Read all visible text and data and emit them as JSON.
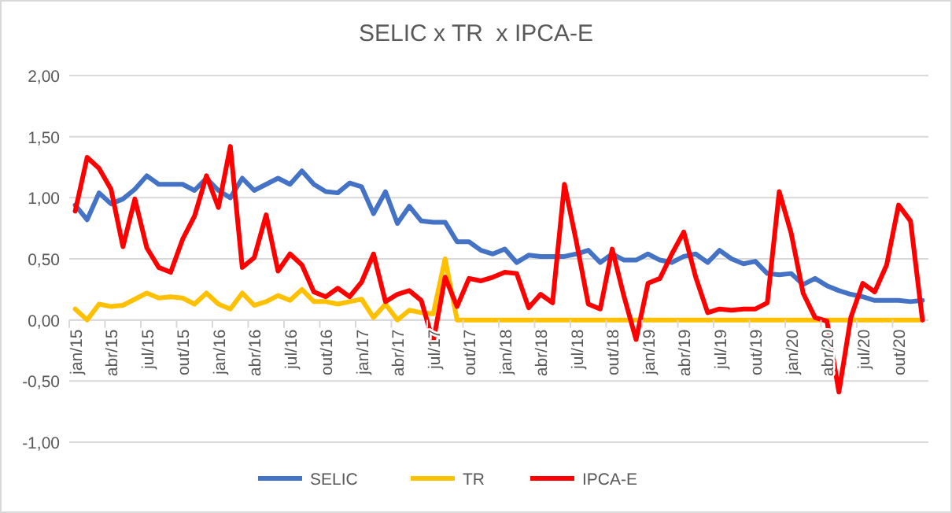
{
  "chart_data": {
    "type": "line",
    "title": "SELIC x TR  x IPCA-E",
    "categories": [
      "jan/15",
      null,
      null,
      "abr/15",
      null,
      null,
      "jul/15",
      null,
      null,
      "out/15",
      null,
      null,
      "jan/16",
      null,
      null,
      "abr/16",
      null,
      null,
      "jul/16",
      null,
      null,
      "out/16",
      null,
      null,
      "jan/17",
      null,
      null,
      "abr/17",
      null,
      null,
      "jul/17",
      null,
      null,
      "out/17",
      null,
      null,
      "jan/18",
      null,
      null,
      "abr/18",
      null,
      null,
      "jul/18",
      null,
      null,
      "out/18",
      null,
      null,
      "jan/19",
      null,
      null,
      "abr/19",
      null,
      null,
      "jul/19",
      null,
      null,
      "out/19",
      null,
      null,
      "jan/20",
      null,
      null,
      "abr/20",
      null,
      null,
      "jul/20",
      null,
      null,
      "out/20",
      null,
      null
    ],
    "series": [
      {
        "name": "SELIC",
        "color": "#4472c4",
        "values": [
          0.94,
          0.82,
          1.04,
          0.95,
          0.99,
          1.07,
          1.18,
          1.11,
          1.11,
          1.11,
          1.06,
          1.16,
          1.06,
          1.0,
          1.16,
          1.06,
          1.11,
          1.16,
          1.11,
          1.22,
          1.11,
          1.05,
          1.04,
          1.12,
          1.09,
          0.87,
          1.05,
          0.79,
          0.93,
          0.81,
          0.8,
          0.8,
          0.64,
          0.64,
          0.57,
          0.54,
          0.58,
          0.47,
          0.53,
          0.52,
          0.52,
          0.52,
          0.54,
          0.57,
          0.47,
          0.54,
          0.49,
          0.49,
          0.54,
          0.49,
          0.47,
          0.52,
          0.54,
          0.47,
          0.57,
          0.5,
          0.46,
          0.48,
          0.38,
          0.37,
          0.38,
          0.29,
          0.34,
          0.28,
          0.24,
          0.21,
          0.19,
          0.16,
          0.16,
          0.16,
          0.15,
          0.16
        ]
      },
      {
        "name": "TR",
        "color": "#ffc000",
        "values": [
          0.09,
          0.0,
          0.13,
          0.11,
          0.12,
          0.17,
          0.22,
          0.18,
          0.19,
          0.18,
          0.13,
          0.22,
          0.13,
          0.09,
          0.22,
          0.12,
          0.15,
          0.2,
          0.16,
          0.25,
          0.15,
          0.15,
          0.13,
          0.15,
          0.17,
          0.02,
          0.13,
          0.0,
          0.08,
          0.06,
          0.05,
          0.5,
          0.0,
          0.0,
          0.0,
          0.0,
          0.0,
          0.0,
          0.0,
          0.0,
          0.0,
          0.0,
          0.0,
          0.0,
          0.0,
          0.0,
          0.0,
          0.0,
          0.0,
          0.0,
          0.0,
          0.0,
          0.0,
          0.0,
          0.0,
          0.0,
          0.0,
          0.0,
          0.0,
          0.0,
          0.0,
          0.0,
          0.0,
          0.0,
          0.0,
          0.0,
          0.0,
          0.0,
          0.0,
          0.0,
          0.0,
          0.0
        ]
      },
      {
        "name": "IPCA-E",
        "color": "#ff0000",
        "values": [
          0.89,
          1.33,
          1.24,
          1.07,
          0.6,
          0.99,
          0.59,
          0.43,
          0.39,
          0.66,
          0.85,
          1.18,
          0.92,
          1.42,
          0.43,
          0.51,
          0.86,
          0.4,
          0.54,
          0.45,
          0.23,
          0.19,
          0.26,
          0.19,
          0.31,
          0.54,
          0.15,
          0.21,
          0.24,
          0.16,
          -0.18,
          0.35,
          0.11,
          0.34,
          0.32,
          0.35,
          0.39,
          0.38,
          0.1,
          0.21,
          0.14,
          1.11,
          0.64,
          0.13,
          0.09,
          0.58,
          0.19,
          -0.16,
          0.3,
          0.34,
          0.54,
          0.72,
          0.35,
          0.06,
          0.09,
          0.08,
          0.09,
          0.09,
          0.14,
          1.05,
          0.71,
          0.22,
          0.02,
          -0.01,
          -0.59,
          0.02,
          0.3,
          0.23,
          0.45,
          0.94,
          0.81,
          0.0
        ]
      }
    ],
    "ylim": [
      -1.0,
      2.0
    ],
    "yticks": [
      {
        "value": -1.0,
        "label": "-1,00"
      },
      {
        "value": -0.5,
        "label": "-0,50"
      },
      {
        "value": 0,
        "label": "0,00"
      },
      {
        "value": 0.5,
        "label": "0,50"
      },
      {
        "value": 1.0,
        "label": "1,00"
      },
      {
        "value": 1.5,
        "label": "1,50"
      },
      {
        "value": 2.0,
        "label": "2,00"
      }
    ],
    "grid": "y",
    "legend": "bottom",
    "marker": "none",
    "line_style": "solid"
  }
}
